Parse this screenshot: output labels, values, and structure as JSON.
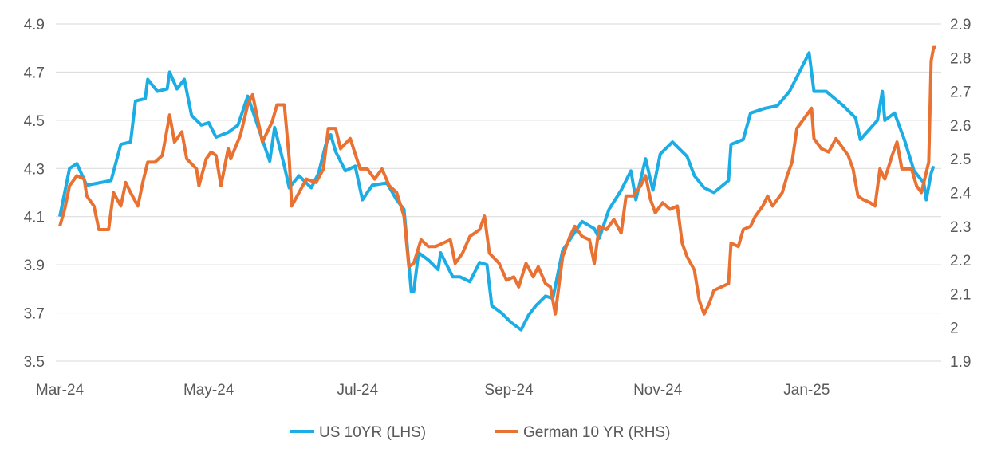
{
  "chart_data": {
    "type": "line",
    "title": "",
    "xlabel": "",
    "x_unit": "days since 1 Mar 2024",
    "x_ticks": [
      {
        "day": 0,
        "label": "Mar-24"
      },
      {
        "day": 61,
        "label": "May-24"
      },
      {
        "day": 122,
        "label": "Jul-24"
      },
      {
        "day": 184,
        "label": "Sep-24"
      },
      {
        "day": 245,
        "label": "Nov-24"
      },
      {
        "day": 306,
        "label": "Jan-25"
      }
    ],
    "x_range": [
      0,
      362
    ],
    "left_axis": {
      "ylim": [
        3.5,
        4.9
      ],
      "ticks": [
        "3.5",
        "3.7",
        "3.9",
        "4.1",
        "4.3",
        "4.5",
        "4.7",
        "4.9"
      ]
    },
    "right_axis": {
      "ylim": [
        1.9,
        2.9
      ],
      "ticks": [
        "1.9",
        "2",
        "2.1",
        "2.2",
        "2.3",
        "2.4",
        "2.5",
        "2.6",
        "2.7",
        "2.8",
        "2.9"
      ]
    },
    "grid": true,
    "legend_position": "bottom",
    "series": [
      {
        "name": "US 10YR (LHS)",
        "axis": "left",
        "color": "#1cadE4",
        "points": [
          [
            0,
            4.1
          ],
          [
            4,
            4.3
          ],
          [
            7,
            4.32
          ],
          [
            11,
            4.23
          ],
          [
            16,
            4.24
          ],
          [
            21,
            4.25
          ],
          [
            25,
            4.4
          ],
          [
            29,
            4.41
          ],
          [
            31,
            4.58
          ],
          [
            35,
            4.59
          ],
          [
            36,
            4.67
          ],
          [
            40,
            4.62
          ],
          [
            44,
            4.63
          ],
          [
            45,
            4.7
          ],
          [
            48,
            4.63
          ],
          [
            51,
            4.67
          ],
          [
            54,
            4.52
          ],
          [
            58,
            4.48
          ],
          [
            61,
            4.49
          ],
          [
            64,
            4.43
          ],
          [
            69,
            4.45
          ],
          [
            73,
            4.48
          ],
          [
            77,
            4.6
          ],
          [
            80,
            4.51
          ],
          [
            84,
            4.39
          ],
          [
            86,
            4.33
          ],
          [
            88,
            4.47
          ],
          [
            92,
            4.31
          ],
          [
            94,
            4.22
          ],
          [
            98,
            4.27
          ],
          [
            103,
            4.22
          ],
          [
            106,
            4.28
          ],
          [
            109,
            4.4
          ],
          [
            111,
            4.44
          ],
          [
            113,
            4.37
          ],
          [
            117,
            4.29
          ],
          [
            121,
            4.31
          ],
          [
            124,
            4.17
          ],
          [
            128,
            4.23
          ],
          [
            134,
            4.24
          ],
          [
            138,
            4.17
          ],
          [
            141,
            4.13
          ],
          [
            142,
            4.02
          ],
          [
            144,
            3.79
          ],
          [
            145,
            3.79
          ],
          [
            147,
            3.95
          ],
          [
            151,
            3.92
          ],
          [
            155,
            3.88
          ],
          [
            156,
            3.95
          ],
          [
            161,
            3.85
          ],
          [
            164,
            3.85
          ],
          [
            168,
            3.83
          ],
          [
            172,
            3.91
          ],
          [
            175,
            3.9
          ],
          [
            177,
            3.73
          ],
          [
            181,
            3.7
          ],
          [
            185,
            3.66
          ],
          [
            189,
            3.63
          ],
          [
            192,
            3.69
          ],
          [
            195,
            3.73
          ],
          [
            199,
            3.77
          ],
          [
            202,
            3.76
          ],
          [
            206,
            3.96
          ],
          [
            210,
            4.02
          ],
          [
            214,
            4.08
          ],
          [
            219,
            4.05
          ],
          [
            221,
            4.01
          ],
          [
            225,
            4.13
          ],
          [
            230,
            4.21
          ],
          [
            234,
            4.29
          ],
          [
            236,
            4.17
          ],
          [
            240,
            4.34
          ],
          [
            243,
            4.21
          ],
          [
            246,
            4.36
          ],
          [
            251,
            4.41
          ],
          [
            257,
            4.35
          ],
          [
            260,
            4.27
          ],
          [
            264,
            4.22
          ],
          [
            268,
            4.2
          ],
          [
            274,
            4.25
          ],
          [
            275,
            4.4
          ],
          [
            280,
            4.42
          ],
          [
            283,
            4.53
          ],
          [
            289,
            4.55
          ],
          [
            294,
            4.56
          ],
          [
            299,
            4.62
          ],
          [
            304,
            4.72
          ],
          [
            307,
            4.78
          ],
          [
            309,
            4.62
          ],
          [
            314,
            4.62
          ],
          [
            321,
            4.56
          ],
          [
            326,
            4.51
          ],
          [
            328,
            4.42
          ],
          [
            335,
            4.5
          ],
          [
            337,
            4.62
          ],
          [
            338,
            4.5
          ],
          [
            342,
            4.53
          ],
          [
            346,
            4.42
          ],
          [
            350,
            4.29
          ],
          [
            354,
            4.24
          ],
          [
            355,
            4.17
          ],
          [
            357,
            4.28
          ],
          [
            358,
            4.31
          ]
        ]
      },
      {
        "name": "German 10 YR (RHS)",
        "axis": "right",
        "color": "#e97132",
        "points": [
          [
            0,
            2.3
          ],
          [
            2,
            2.35
          ],
          [
            4,
            2.42
          ],
          [
            7,
            2.45
          ],
          [
            10,
            2.44
          ],
          [
            11,
            2.39
          ],
          [
            14,
            2.36
          ],
          [
            16,
            2.29
          ],
          [
            20,
            2.29
          ],
          [
            22,
            2.4
          ],
          [
            25,
            2.36
          ],
          [
            27,
            2.43
          ],
          [
            29,
            2.4
          ],
          [
            32,
            2.36
          ],
          [
            34,
            2.43
          ],
          [
            36,
            2.49
          ],
          [
            39,
            2.49
          ],
          [
            42,
            2.51
          ],
          [
            45,
            2.63
          ],
          [
            47,
            2.55
          ],
          [
            50,
            2.58
          ],
          [
            52,
            2.5
          ],
          [
            56,
            2.47
          ],
          [
            57,
            2.42
          ],
          [
            60,
            2.5
          ],
          [
            62,
            2.52
          ],
          [
            64,
            2.51
          ],
          [
            66,
            2.42
          ],
          [
            69,
            2.53
          ],
          [
            70,
            2.5
          ],
          [
            74,
            2.57
          ],
          [
            77,
            2.66
          ],
          [
            79,
            2.69
          ],
          [
            83,
            2.55
          ],
          [
            87,
            2.61
          ],
          [
            89,
            2.66
          ],
          [
            92,
            2.66
          ],
          [
            94,
            2.5
          ],
          [
            95,
            2.36
          ],
          [
            98,
            2.4
          ],
          [
            101,
            2.44
          ],
          [
            105,
            2.43
          ],
          [
            108,
            2.47
          ],
          [
            110,
            2.59
          ],
          [
            113,
            2.59
          ],
          [
            115,
            2.53
          ],
          [
            119,
            2.56
          ],
          [
            123,
            2.47
          ],
          [
            126,
            2.47
          ],
          [
            129,
            2.44
          ],
          [
            132,
            2.47
          ],
          [
            135,
            2.42
          ],
          [
            138,
            2.4
          ],
          [
            141,
            2.33
          ],
          [
            143,
            2.18
          ],
          [
            145,
            2.19
          ],
          [
            148,
            2.26
          ],
          [
            151,
            2.24
          ],
          [
            154,
            2.24
          ],
          [
            157,
            2.25
          ],
          [
            160,
            2.26
          ],
          [
            162,
            2.19
          ],
          [
            165,
            2.22
          ],
          [
            168,
            2.27
          ],
          [
            172,
            2.29
          ],
          [
            174,
            2.33
          ],
          [
            176,
            2.22
          ],
          [
            180,
            2.19
          ],
          [
            183,
            2.14
          ],
          [
            186,
            2.15
          ],
          [
            188,
            2.12
          ],
          [
            191,
            2.19
          ],
          [
            194,
            2.15
          ],
          [
            196,
            2.18
          ],
          [
            199,
            2.13
          ],
          [
            201,
            2.12
          ],
          [
            203,
            2.04
          ],
          [
            206,
            2.21
          ],
          [
            209,
            2.27
          ],
          [
            211,
            2.3
          ],
          [
            214,
            2.27
          ],
          [
            217,
            2.26
          ],
          [
            219,
            2.19
          ],
          [
            221,
            2.3
          ],
          [
            224,
            2.29
          ],
          [
            227,
            2.32
          ],
          [
            230,
            2.28
          ],
          [
            232,
            2.39
          ],
          [
            235,
            2.39
          ],
          [
            238,
            2.42
          ],
          [
            240,
            2.45
          ],
          [
            242,
            2.38
          ],
          [
            244,
            2.34
          ],
          [
            247,
            2.37
          ],
          [
            250,
            2.35
          ],
          [
            253,
            2.36
          ],
          [
            255,
            2.25
          ],
          [
            257,
            2.21
          ],
          [
            260,
            2.17
          ],
          [
            262,
            2.08
          ],
          [
            264,
            2.04
          ],
          [
            266,
            2.07
          ],
          [
            268,
            2.11
          ],
          [
            271,
            2.12
          ],
          [
            274,
            2.13
          ],
          [
            275,
            2.25
          ],
          [
            278,
            2.24
          ],
          [
            280,
            2.29
          ],
          [
            283,
            2.3
          ],
          [
            285,
            2.33
          ],
          [
            288,
            2.36
          ],
          [
            290,
            2.39
          ],
          [
            292,
            2.36
          ],
          [
            296,
            2.4
          ],
          [
            298,
            2.45
          ],
          [
            300,
            2.49
          ],
          [
            302,
            2.59
          ],
          [
            305,
            2.62
          ],
          [
            307,
            2.64
          ],
          [
            308,
            2.65
          ],
          [
            309,
            2.56
          ],
          [
            312,
            2.53
          ],
          [
            315,
            2.52
          ],
          [
            318,
            2.56
          ],
          [
            321,
            2.53
          ],
          [
            323,
            2.51
          ],
          [
            325,
            2.47
          ],
          [
            327,
            2.39
          ],
          [
            329,
            2.38
          ],
          [
            332,
            2.37
          ],
          [
            334,
            2.36
          ],
          [
            336,
            2.47
          ],
          [
            338,
            2.44
          ],
          [
            341,
            2.51
          ],
          [
            343,
            2.55
          ],
          [
            345,
            2.47
          ],
          [
            349,
            2.47
          ],
          [
            351,
            2.42
          ],
          [
            353,
            2.4
          ],
          [
            355,
            2.46
          ],
          [
            356,
            2.49
          ],
          [
            357,
            2.79
          ],
          [
            358,
            2.83
          ],
          [
            359,
            2.83
          ]
        ]
      }
    ]
  }
}
